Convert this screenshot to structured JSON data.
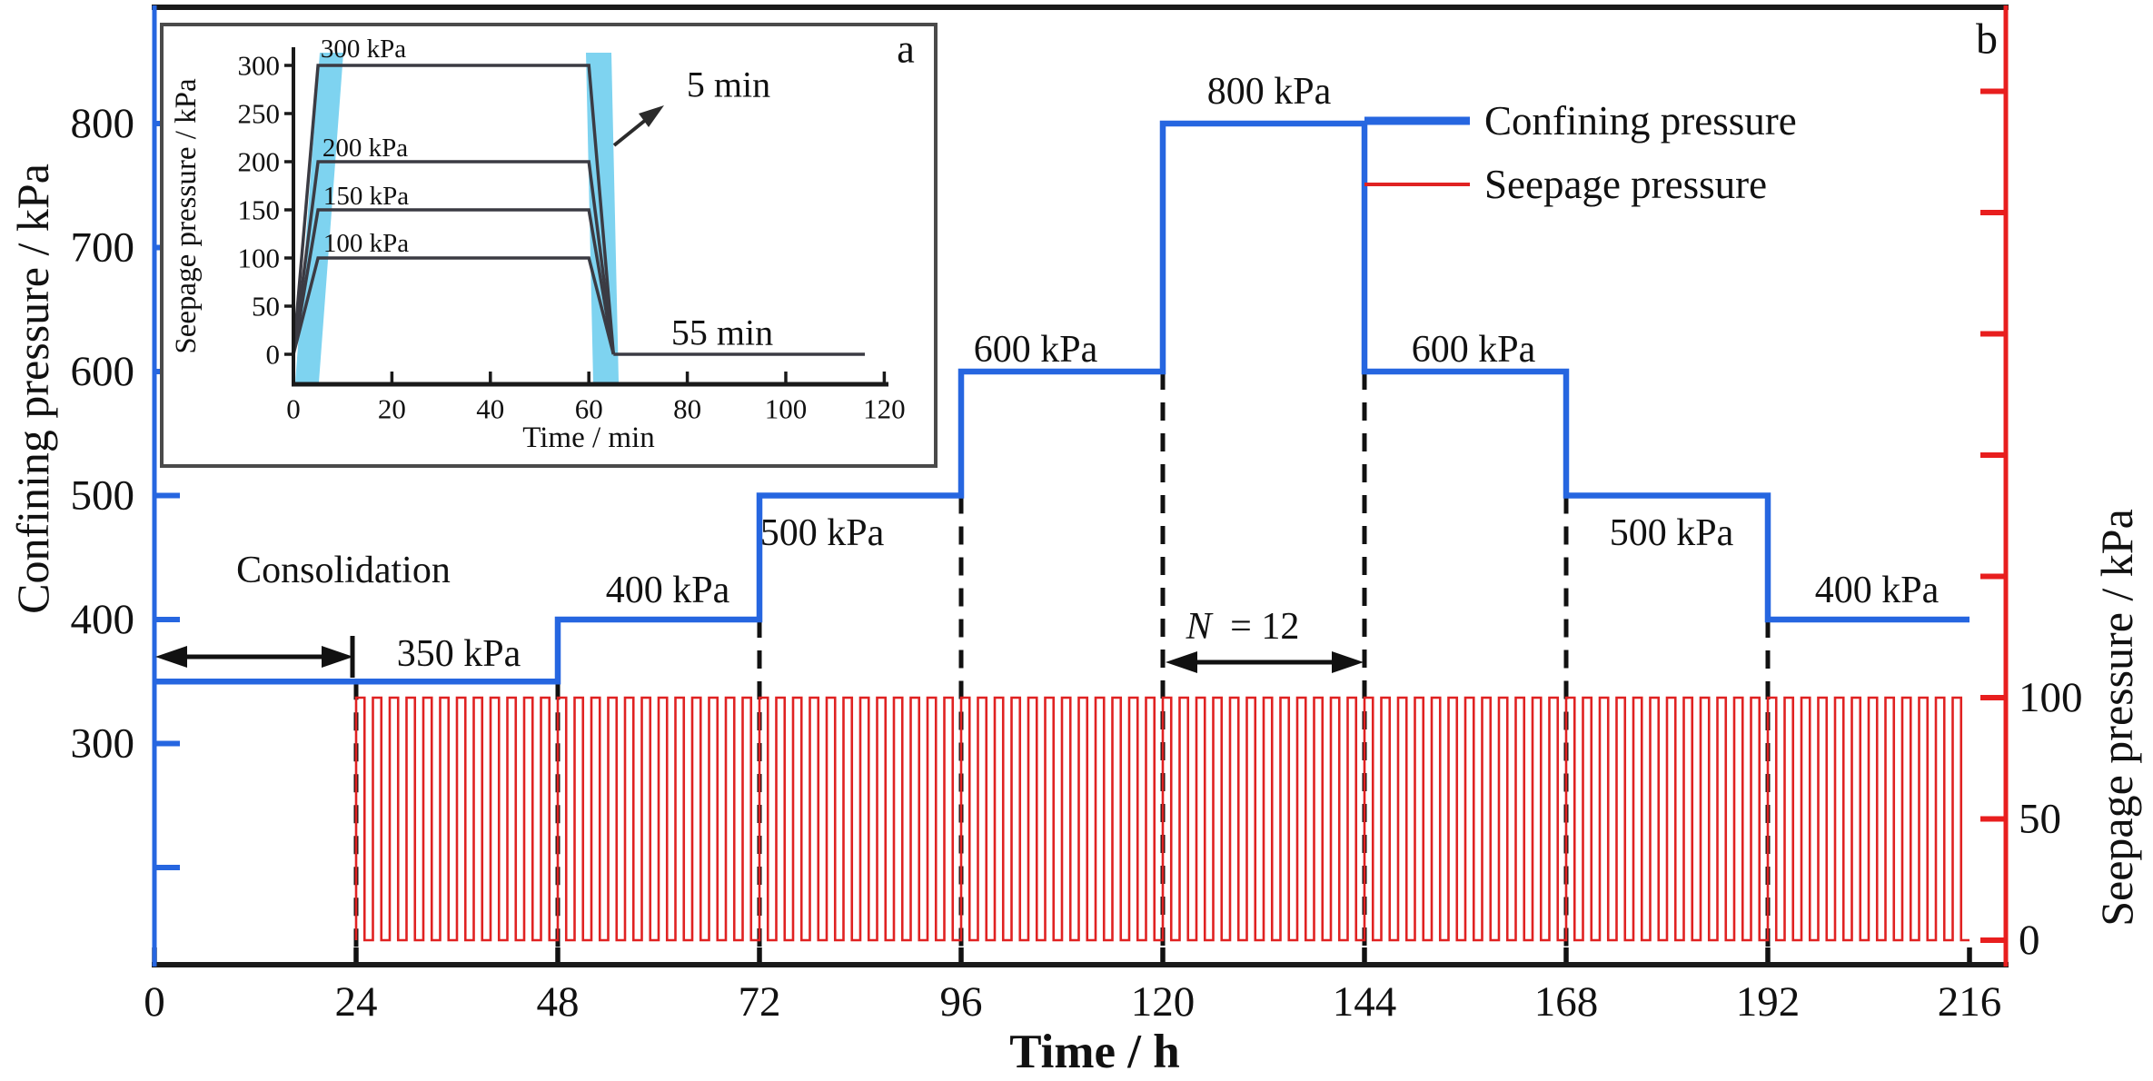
{
  "chart_data": [
    {
      "id": "main",
      "type": "line",
      "panel_label": "b",
      "xlabel": "Time / h",
      "xlim": [
        0,
        216
      ],
      "x_ticks": [
        0,
        24,
        48,
        72,
        96,
        120,
        144,
        168,
        192,
        216
      ],
      "left_axis": {
        "label": "Confining pressure / kPa",
        "ticks": [
          800,
          700,
          600,
          500,
          400,
          300
        ],
        "minor_ticks": [
          200
        ],
        "color": "#2666e0"
      },
      "right_axis": {
        "label": "Seepage pressure / kPa",
        "ticks": [
          100,
          50,
          0
        ],
        "minor_ticks": [
          150,
          200,
          250,
          300,
          350
        ],
        "color": "#e81e1e"
      },
      "series": [
        {
          "name": "Confining pressure",
          "type": "step",
          "color": "#2666e0",
          "units": "kPa",
          "steps": [
            {
              "from_h": 0,
              "to_h": 48,
              "kpa": 350
            },
            {
              "from_h": 48,
              "to_h": 72,
              "kpa": 400
            },
            {
              "from_h": 72,
              "to_h": 96,
              "kpa": 500
            },
            {
              "from_h": 96,
              "to_h": 120,
              "kpa": 600
            },
            {
              "from_h": 120,
              "to_h": 144,
              "kpa": 800
            },
            {
              "from_h": 144,
              "to_h": 168,
              "kpa": 600
            },
            {
              "from_h": 168,
              "to_h": 192,
              "kpa": 500
            },
            {
              "from_h": 192,
              "to_h": 216,
              "kpa": 400
            }
          ]
        },
        {
          "name": "Seepage pressure",
          "type": "square_wave",
          "color": "#e02222",
          "start_h": 24,
          "end_h": 216,
          "low_kpa": 0,
          "high_kpa": 100,
          "cycles": 96,
          "cycles_per_stage": 12,
          "duty": 0.5
        }
      ],
      "dashed_lines_h": [
        24,
        48,
        72,
        96,
        120,
        144,
        168,
        192
      ],
      "annotations": {
        "consolidation": {
          "label": "Consolidation",
          "from_h": 0,
          "to_h": 24
        },
        "n_label": {
          "text": "N = 12",
          "italic_part": "N",
          "rest_part": "= 12",
          "from_h": 120,
          "to_h": 144
        },
        "step_labels": [
          "350 kPa",
          "400 kPa",
          "500 kPa",
          "600 kPa",
          "800 kPa",
          "600 kPa",
          "500 kPa",
          "400 kPa"
        ]
      },
      "legend": [
        {
          "label": "Confining pressure",
          "color": "#2666e0"
        },
        {
          "label": "Seepage pressure",
          "color": "#e02222"
        }
      ]
    },
    {
      "id": "inset",
      "type": "line",
      "panel_label": "a",
      "xlabel": "Time / min",
      "ylabel": "Seepage pressure / kPa",
      "xlim": [
        0,
        120
      ],
      "ylim": [
        0,
        300
      ],
      "x_ticks": [
        0,
        20,
        40,
        60,
        80,
        100,
        120
      ],
      "y_ticks": [
        300,
        250,
        200,
        150,
        100,
        50,
        0
      ],
      "levels_kpa": [
        300,
        200,
        150,
        100
      ],
      "level_labels": [
        "300 kPa",
        "200 kPa",
        "150 kPa",
        "100 kPa"
      ],
      "ramp_up_min": [
        0,
        5
      ],
      "hold_min": [
        5,
        60
      ],
      "ramp_down_min": [
        60,
        65
      ],
      "rest_min": [
        65,
        120
      ],
      "annotations": {
        "ramp_duration": "5 min",
        "rest_duration": "55 min"
      },
      "band_color": "#7ed3f0",
      "line_color": "#3b3b43"
    }
  ]
}
